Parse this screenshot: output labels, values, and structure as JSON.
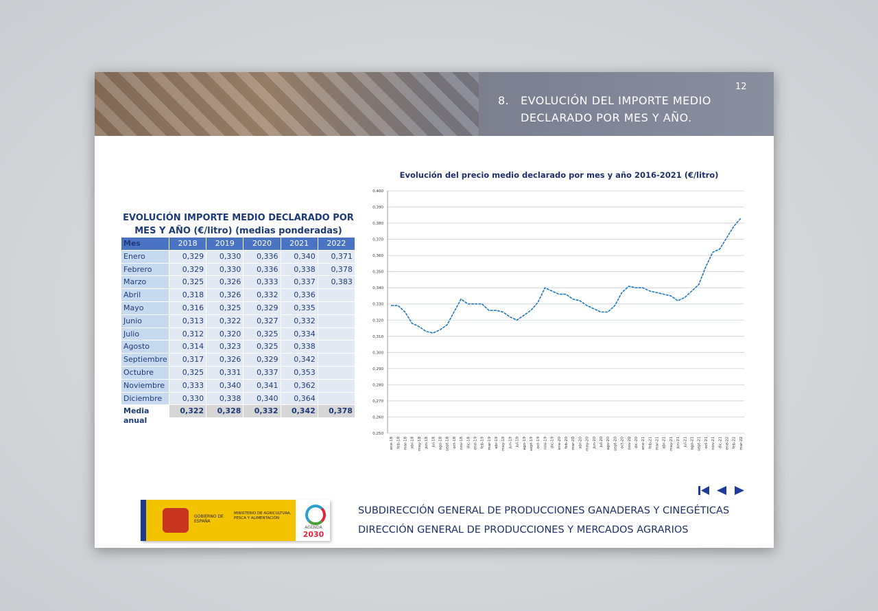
{
  "header": {
    "number": "8.",
    "title_lines": [
      "EVOLUCIÓN DEL IMPORTE MEDIO",
      "DECLARADO POR MES Y AÑO."
    ],
    "page": "12"
  },
  "table": {
    "title_lines": [
      "EVOLUCIÓN IMPORTE MEDIO DECLARADO POR",
      "MES Y AÑO (€/litro) (medias ponderadas)"
    ],
    "header": [
      "Mes",
      "2018",
      "2019",
      "2020",
      "2021",
      "2022"
    ],
    "rows": [
      [
        "Enero",
        "0,329",
        "0,330",
        "0,336",
        "0,340",
        "0,371"
      ],
      [
        "Febrero",
        "0,329",
        "0,330",
        "0,336",
        "0,338",
        "0,378"
      ],
      [
        "Marzo",
        "0,325",
        "0,326",
        "0,333",
        "0,337",
        "0,383"
      ],
      [
        "Abril",
        "0,318",
        "0,326",
        "0,332",
        "0,336"
      ],
      [
        "Mayo",
        "0,316",
        "0,325",
        "0,329",
        "0,335"
      ],
      [
        "Junio",
        "0,313",
        "0,322",
        "0,327",
        "0,332"
      ],
      [
        "Julio",
        "0,312",
        "0,320",
        "0,325",
        "0,334"
      ],
      [
        "Agosto",
        "0,314",
        "0,323",
        "0,325",
        "0,338"
      ],
      [
        "Septiembre",
        "0,317",
        "0,326",
        "0,329",
        "0,342"
      ],
      [
        "Octubre",
        "0,325",
        "0,331",
        "0,337",
        "0,353"
      ],
      [
        "Noviembre",
        "0,333",
        "0,340",
        "0,341",
        "0,362"
      ],
      [
        "Diciembre",
        "0,330",
        "0,338",
        "0,340",
        "0,364"
      ]
    ],
    "footer": [
      "Media anual",
      "0,322",
      "0,328",
      "0,332",
      "0,342",
      "0,378"
    ]
  },
  "chart_data": {
    "type": "line",
    "title": "Evolución del precio medio declarado por mes y año 2016-2021 (€/litro)",
    "color": "#1f78c1",
    "grid": true,
    "categories": [
      "ene-18",
      "feb-18",
      "mar-18",
      "abr-18",
      "may-18",
      "jun-18",
      "jul-18",
      "ago-18",
      "sept-18",
      "oct-18",
      "nov-18",
      "dic-18",
      "ene-19",
      "feb-19",
      "mar-19",
      "abr-19",
      "may-19",
      "jun-19",
      "jul-19",
      "ago-19",
      "sept-19",
      "oct-19",
      "nov-19",
      "dic-19",
      "ene-20",
      "feb-20",
      "mar-20",
      "abr-20",
      "may-20",
      "jun-20",
      "jul-20",
      "ago-20",
      "sept-20",
      "oct-20",
      "nov-20",
      "dic-20",
      "ene-21",
      "feb-21",
      "mar-21",
      "abr-21",
      "may-21",
      "jun-21",
      "jul-21",
      "ago-21",
      "sept-21",
      "oct-21",
      "nov-21",
      "dic-21",
      "ene-22",
      "feb-22",
      "mar-22"
    ],
    "values": [
      0.329,
      0.329,
      0.325,
      0.318,
      0.316,
      0.313,
      0.312,
      0.314,
      0.317,
      0.325,
      0.333,
      0.33,
      0.33,
      0.33,
      0.326,
      0.326,
      0.325,
      0.322,
      0.32,
      0.323,
      0.326,
      0.331,
      0.34,
      0.338,
      0.336,
      0.336,
      0.333,
      0.332,
      0.329,
      0.327,
      0.325,
      0.325,
      0.329,
      0.337,
      0.341,
      0.34,
      0.34,
      0.338,
      0.337,
      0.336,
      0.335,
      0.332,
      0.334,
      0.338,
      0.342,
      0.353,
      0.362,
      0.364,
      0.371,
      0.378,
      0.383
    ],
    "ylim": [
      0.25,
      0.4
    ],
    "yticks": [
      {
        "value": 0.25,
        "label": "0,250"
      },
      {
        "value": 0.26,
        "label": "0,260"
      },
      {
        "value": 0.27,
        "label": "0,270"
      },
      {
        "value": 0.28,
        "label": "0,280"
      },
      {
        "value": 0.29,
        "label": "0,290"
      },
      {
        "value": 0.3,
        "label": "0,300"
      },
      {
        "value": 0.31,
        "label": "0,310"
      },
      {
        "value": 0.32,
        "label": "0,320"
      },
      {
        "value": 0.33,
        "label": "0,330"
      },
      {
        "value": 0.34,
        "label": "0,340"
      },
      {
        "value": 0.35,
        "label": "0,350"
      },
      {
        "value": 0.36,
        "label": "0,360"
      },
      {
        "value": 0.37,
        "label": "0,370"
      },
      {
        "value": 0.38,
        "label": "0,380"
      },
      {
        "value": 0.39,
        "label": "0,390"
      },
      {
        "value": 0.4,
        "label": "0,400"
      }
    ]
  },
  "footer": {
    "gov": "GOBIERNO DE ESPAÑA",
    "ministry": "MINISTERIO DE AGRICULTURA, PESCA Y ALIMENTACIÓN",
    "agenda": "AGENDA",
    "agenda_year": "2030",
    "lines": [
      "SUBDIRECCIÓN GENERAL DE PRODUCCIONES GANADERAS Y CINEGÉTICAS",
      "DIRECCIÓN GENERAL DE PRODUCCIONES Y MERCADOS AGRARIOS"
    ]
  }
}
